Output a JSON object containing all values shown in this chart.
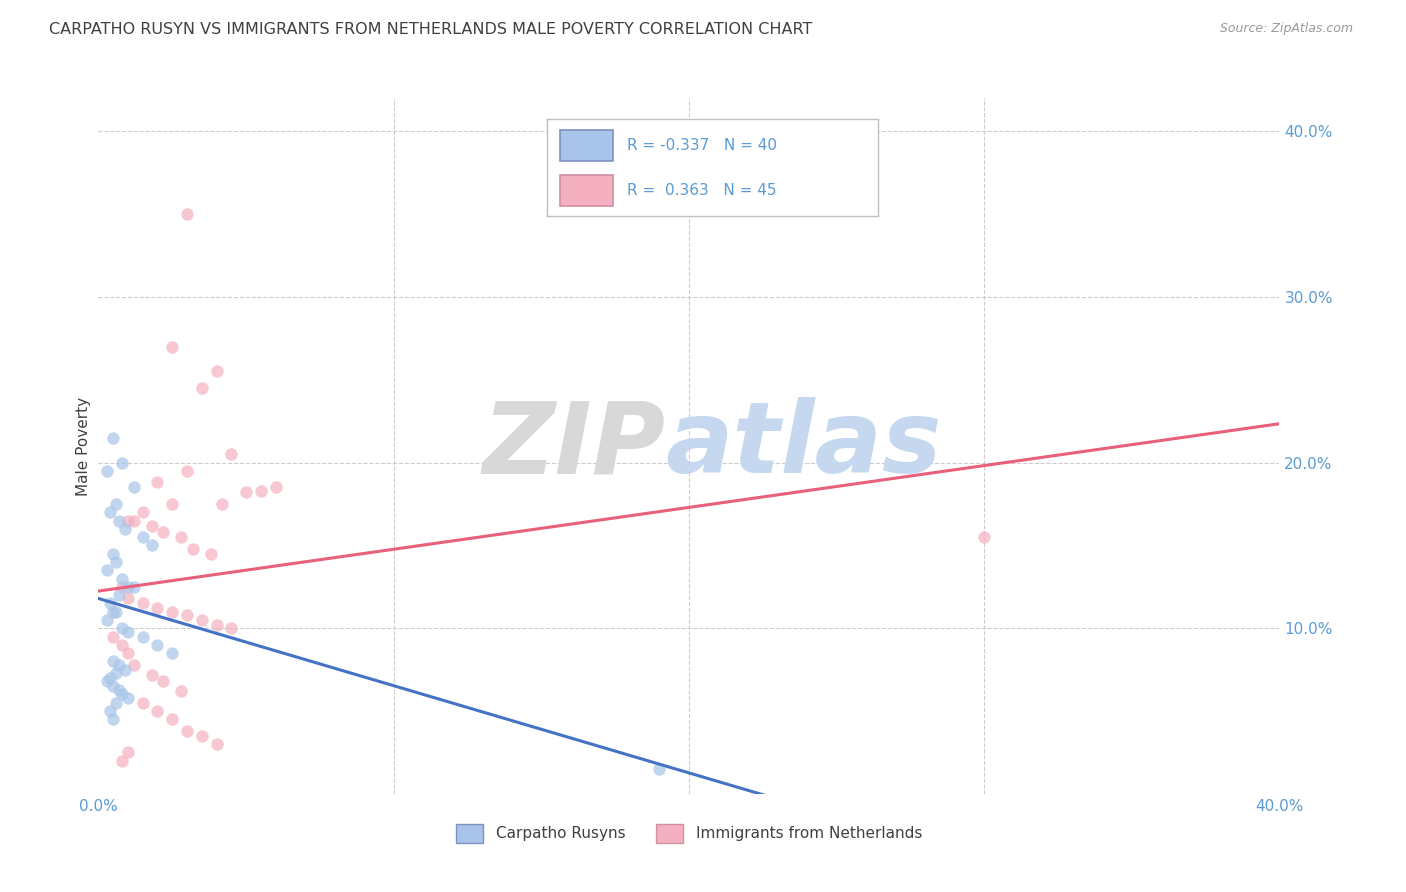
{
  "title": "CARPATHO RUSYN VS IMMIGRANTS FROM NETHERLANDS MALE POVERTY CORRELATION CHART",
  "source": "Source: ZipAtlas.com",
  "ylabel": "Male Poverty",
  "watermark_zip": "ZIP",
  "watermark_atlas": "atlas",
  "legend_blue_text": "R = -0.337   N = 40",
  "legend_pink_text": "R =  0.363   N = 45",
  "legend_blue_label": "Carpatho Rusyns",
  "legend_pink_label": "Immigrants from Netherlands",
  "xlim": [
    0.0,
    0.4
  ],
  "ylim": [
    0.0,
    0.42
  ],
  "blue_scatter_x": [
    0.005,
    0.008,
    0.003,
    0.012,
    0.006,
    0.004,
    0.007,
    0.009,
    0.015,
    0.018,
    0.005,
    0.006,
    0.003,
    0.008,
    0.01,
    0.012,
    0.007,
    0.004,
    0.006,
    0.005,
    0.003,
    0.008,
    0.01,
    0.015,
    0.02,
    0.025,
    0.005,
    0.007,
    0.009,
    0.006,
    0.004,
    0.003,
    0.005,
    0.007,
    0.008,
    0.01,
    0.006,
    0.004,
    0.19,
    0.005
  ],
  "blue_scatter_y": [
    0.215,
    0.2,
    0.195,
    0.185,
    0.175,
    0.17,
    0.165,
    0.16,
    0.155,
    0.15,
    0.145,
    0.14,
    0.135,
    0.13,
    0.125,
    0.125,
    0.12,
    0.115,
    0.11,
    0.11,
    0.105,
    0.1,
    0.098,
    0.095,
    0.09,
    0.085,
    0.08,
    0.078,
    0.075,
    0.073,
    0.07,
    0.068,
    0.065,
    0.063,
    0.06,
    0.058,
    0.055,
    0.05,
    0.015,
    0.045
  ],
  "pink_scatter_x": [
    0.03,
    0.025,
    0.04,
    0.035,
    0.045,
    0.03,
    0.02,
    0.025,
    0.015,
    0.01,
    0.012,
    0.018,
    0.022,
    0.028,
    0.032,
    0.038,
    0.042,
    0.05,
    0.055,
    0.06,
    0.008,
    0.01,
    0.015,
    0.02,
    0.025,
    0.03,
    0.035,
    0.04,
    0.045,
    0.3,
    0.005,
    0.008,
    0.01,
    0.012,
    0.018,
    0.022,
    0.028,
    0.015,
    0.02,
    0.025,
    0.03,
    0.035,
    0.04,
    0.01,
    0.008
  ],
  "pink_scatter_y": [
    0.35,
    0.27,
    0.255,
    0.245,
    0.205,
    0.195,
    0.188,
    0.175,
    0.17,
    0.165,
    0.165,
    0.162,
    0.158,
    0.155,
    0.148,
    0.145,
    0.175,
    0.182,
    0.183,
    0.185,
    0.125,
    0.118,
    0.115,
    0.112,
    0.11,
    0.108,
    0.105,
    0.102,
    0.1,
    0.155,
    0.095,
    0.09,
    0.085,
    0.078,
    0.072,
    0.068,
    0.062,
    0.055,
    0.05,
    0.045,
    0.038,
    0.035,
    0.03,
    0.025,
    0.02
  ],
  "blue_line_color": "#4472C4",
  "pink_line_color": "#E8607A",
  "blue_dot_color": "#a8c4e8",
  "pink_dot_color": "#f4b0c0",
  "grid_color": "#cccccc",
  "title_color": "#404040",
  "axis_tick_color": "#5b9bd5",
  "ylabel_color": "#404040",
  "watermark_zip_color": "#d8d8d8",
  "watermark_atlas_color": "#c5d8f0",
  "source_color": "#999999",
  "legend_border_color": "#c0c0c8",
  "background_color": "#ffffff",
  "dot_size": 80,
  "dot_alpha": 0.7
}
